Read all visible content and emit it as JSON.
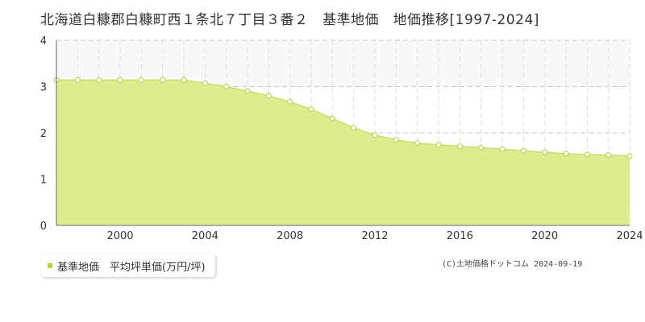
{
  "title": "北海道白糠郡白糠町西１条北７丁目３番２　基準地価　地価推移[1997-2024]",
  "legend": {
    "label": "基準地価　平均坪単価(万円/坪)"
  },
  "credit": "(C)土地価格ドットコム 2024-09-19",
  "colors": {
    "area_fill": "#dcec8f",
    "line": "#c8de6a",
    "marker_fill": "#ffffff",
    "marker_stroke": "#b9d35a",
    "legend_swatch": "#b4d236",
    "grid": "#cccccc",
    "band": "#f8f8f8",
    "axis_text": "#333333"
  },
  "chart_data": {
    "type": "area",
    "x": [
      1997,
      1998,
      1999,
      2000,
      2001,
      2002,
      2003,
      2004,
      2005,
      2006,
      2007,
      2008,
      2009,
      2010,
      2011,
      2012,
      2013,
      2014,
      2015,
      2016,
      2017,
      2018,
      2019,
      2020,
      2021,
      2022,
      2023,
      2024
    ],
    "series": [
      {
        "name": "基準地価　平均坪単価(万円/坪)",
        "values": [
          3.14,
          3.14,
          3.14,
          3.14,
          3.14,
          3.14,
          3.14,
          3.07,
          3.0,
          2.9,
          2.8,
          2.67,
          2.51,
          2.31,
          2.11,
          1.95,
          1.85,
          1.78,
          1.74,
          1.71,
          1.68,
          1.65,
          1.61,
          1.58,
          1.55,
          1.53,
          1.52,
          1.5
        ]
      }
    ],
    "xlim": [
      1997,
      2024
    ],
    "ylim": [
      0,
      4
    ],
    "x_ticks": [
      "2000",
      "2004",
      "2008",
      "2012",
      "2016",
      "2020",
      "2024"
    ],
    "y_ticks": [
      "0",
      "1",
      "2",
      "3",
      "4"
    ],
    "xlabel": "",
    "ylabel": "",
    "grid": true
  }
}
